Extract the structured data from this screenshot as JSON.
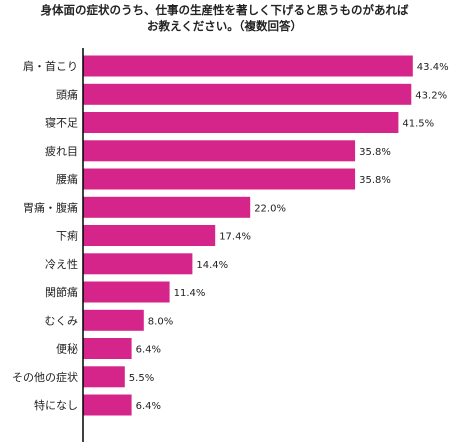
{
  "chart_data": {
    "type": "bar",
    "orientation": "horizontal",
    "title_lines": [
      "身体面の症状のうち、仕事の生産性を著しく下げると思うものがあれば",
      "お教えください。（複数回答）"
    ],
    "categories": [
      "肩・首こり",
      "頭痛",
      "寝不足",
      "疲れ目",
      "腰痛",
      "胃痛・腹痛",
      "下痢",
      "冷え性",
      "関節痛",
      "むくみ",
      "便秘",
      "その他の症状",
      "特になし"
    ],
    "values": [
      43.4,
      43.2,
      41.5,
      35.8,
      35.8,
      22.0,
      17.4,
      14.4,
      11.4,
      8.0,
      6.4,
      5.5,
      6.4
    ],
    "value_labels": [
      "43.4%",
      "43.2%",
      "41.5%",
      "35.8%",
      "35.8%",
      "22.0%",
      "17.4%",
      "14.4%",
      "11.4%",
      "8.0%",
      "6.4%",
      "5.5%",
      "6.4%"
    ],
    "xlim": [
      0,
      50
    ],
    "bar_color": "#d6258a",
    "axis_color": "#000000",
    "grid": false,
    "legend": "none"
  }
}
